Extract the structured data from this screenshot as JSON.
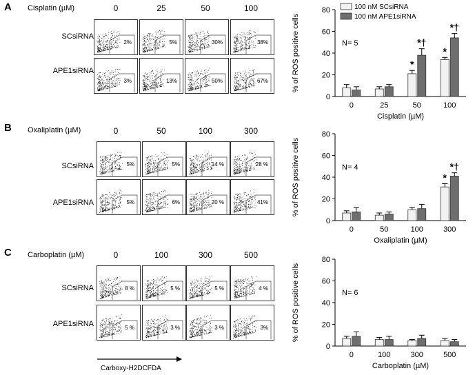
{
  "panels": [
    {
      "label": "A",
      "drug_label": "Cisplatin (µM)",
      "doses": [
        "0",
        "25",
        "50",
        "100"
      ],
      "rows": [
        {
          "name": "SCsiRNA",
          "pcts": [
            "2%",
            "5%",
            "30%",
            "38%"
          ]
        },
        {
          "name": "APE1siRNA",
          "pcts": [
            "3%",
            "13%",
            "50%",
            "67%"
          ]
        }
      ]
    },
    {
      "label": "B",
      "drug_label": "Oxaliplatin (µM)",
      "doses": [
        "0",
        "50",
        "100",
        "300"
      ],
      "rows": [
        {
          "name": "SCsiRNA",
          "pcts": [
            "5%",
            "5%",
            "14 %",
            "28 %"
          ]
        },
        {
          "name": "APE1siRNA",
          "pcts": [
            "5%",
            "6%",
            "20 %",
            "41%"
          ]
        }
      ]
    },
    {
      "label": "C",
      "drug_label": "Carboplatin (µM)",
      "doses": [
        "0",
        "100",
        "300",
        "500"
      ],
      "rows": [
        {
          "name": "SCsiRNA",
          "pcts": [
            "8 %",
            "5 %",
            "5 %",
            "4 %"
          ]
        },
        {
          "name": "APE1siRNA",
          "pcts": [
            "5 %",
            "3 %",
            "3 %",
            "3%"
          ]
        }
      ]
    }
  ],
  "facs_axis_label": "Carboxy-H2DCFDA",
  "legend": {
    "series1": "100 nM SCsiRNA",
    "series2": "100 nM APE1siRNA"
  },
  "colors": {
    "series1": "#f2f2f2",
    "series2": "#6e6e6e"
  },
  "chart_data": [
    {
      "type": "bar",
      "title": "",
      "xlabel": "Cisplatin (µM)",
      "ylabel": "% of  ROS positive cells",
      "ylim": [
        0,
        80
      ],
      "yticks": [
        0,
        20,
        40,
        60,
        80
      ],
      "categories": [
        "0",
        "25",
        "50",
        "100"
      ],
      "series": [
        {
          "name": "100 nM SCsiRNA",
          "values": [
            8,
            7,
            21,
            34
          ],
          "errors": [
            3,
            2,
            3,
            2
          ]
        },
        {
          "name": "100 nM APE1siRNA",
          "values": [
            6,
            9,
            38,
            54
          ],
          "errors": [
            3,
            2,
            6,
            4
          ]
        }
      ],
      "annotation": "N= 5",
      "markers": [
        {
          "category": "50",
          "series": 0,
          "text": "*"
        },
        {
          "category": "50",
          "series": 1,
          "text": "*†"
        },
        {
          "category": "100",
          "series": 0,
          "text": "*"
        },
        {
          "category": "100",
          "series": 1,
          "text": "*†"
        }
      ]
    },
    {
      "type": "bar",
      "title": "",
      "xlabel": "Oxaliplatin (µM)",
      "ylabel": "% of  ROS positive cells",
      "ylim": [
        0,
        80
      ],
      "yticks": [
        0,
        20,
        40,
        60,
        80
      ],
      "categories": [
        "0",
        "50",
        "100",
        "300"
      ],
      "series": [
        {
          "name": "100 nM SCsiRNA",
          "values": [
            7,
            5,
            10,
            31
          ],
          "errors": [
            2,
            2,
            2,
            3
          ]
        },
        {
          "name": "100 nM APE1siRNA",
          "values": [
            8,
            6,
            11,
            41
          ],
          "errors": [
            4,
            2,
            4,
            3
          ]
        }
      ],
      "annotation": "N= 4",
      "markers": [
        {
          "category": "300",
          "series": 0,
          "text": "*"
        },
        {
          "category": "300",
          "series": 1,
          "text": "*†"
        }
      ]
    },
    {
      "type": "bar",
      "title": "",
      "xlabel": "Carboplatin (µM)",
      "ylabel": "% of  ROS positive cells",
      "ylim": [
        0,
        80
      ],
      "yticks": [
        0,
        20,
        40,
        60,
        80
      ],
      "categories": [
        "0",
        "100",
        "300",
        "500"
      ],
      "series": [
        {
          "name": "100 nM SCsiRNA",
          "values": [
            7,
            6,
            5,
            5
          ],
          "errors": [
            2,
            2,
            1,
            2
          ]
        },
        {
          "name": "100 nM APE1siRNA",
          "values": [
            9,
            6,
            7,
            4
          ],
          "errors": [
            4,
            3,
            3,
            2
          ]
        }
      ],
      "annotation": "N= 6",
      "markers": []
    }
  ]
}
